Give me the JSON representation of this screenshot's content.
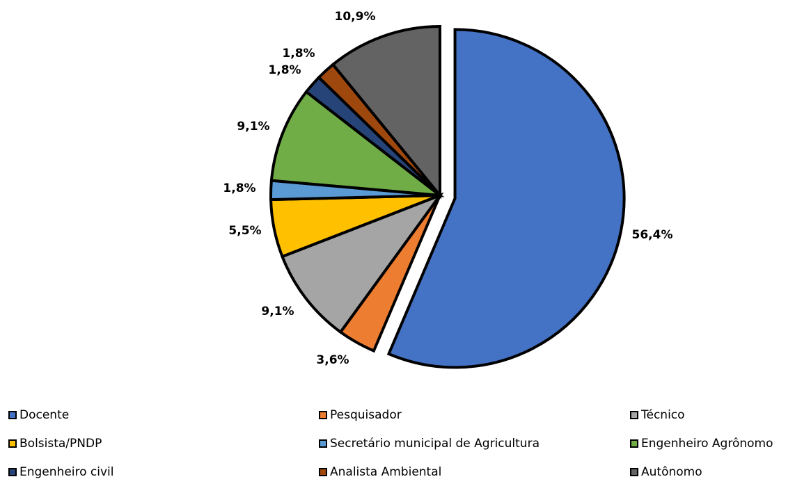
{
  "chart_data": {
    "type": "pie",
    "title": "",
    "slices": [
      {
        "name": "Docente",
        "value": 56.4,
        "label": "56,4%",
        "color": "#4472C4"
      },
      {
        "name": "Pesquisador",
        "value": 3.6,
        "label": "3,6%",
        "color": "#ED7D31"
      },
      {
        "name": "Técnico",
        "value": 9.1,
        "label": "9,1%",
        "color": "#A5A5A5"
      },
      {
        "name": "Bolsista/PNDP",
        "value": 5.5,
        "label": "5,5%",
        "color": "#FFC000"
      },
      {
        "name": "Secretário municipal de Agricultura",
        "value": 1.8,
        "label": "1,8%",
        "color": "#5B9BD5"
      },
      {
        "name": "Engenheiro Agrônomo",
        "value": 9.1,
        "label": "9,1%",
        "color": "#70AD47"
      },
      {
        "name": "Engenheiro civil",
        "value": 1.8,
        "label": "1,8%",
        "color": "#264478"
      },
      {
        "name": "Analista Ambiental",
        "value": 1.8,
        "label": "1,8%",
        "color": "#9E480E"
      },
      {
        "name": "Autônomo",
        "value": 10.9,
        "label": "10,9%",
        "color": "#636363"
      }
    ],
    "exploded_slice": "Docente",
    "legend_position": "bottom"
  }
}
